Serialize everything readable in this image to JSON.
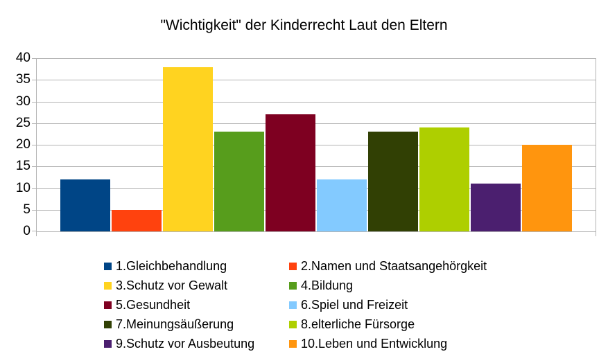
{
  "chart_data": {
    "type": "bar",
    "title": "\"Wichtigkeit\" der Kinderrecht Laut den Eltern",
    "categories": [
      "1.Gleichbehandlung",
      "2.Namen und Staatsangehörgkeit",
      "3.Schutz vor Gewalt",
      "4.Bildung",
      "5.Gesundheit",
      "6.Spiel und Freizeit",
      "7.Meinungsäußerung",
      "8.elterliche Fürsorge",
      "9.Schutz vor Ausbeutung",
      "10.Leben und Entwicklung"
    ],
    "series": [
      {
        "name": "1.Gleichbehandlung",
        "value": 12,
        "color": "#004586"
      },
      {
        "name": "2.Namen und Staatsangehörgkeit",
        "value": 5,
        "color": "#ff420e"
      },
      {
        "name": "3.Schutz vor Gewalt",
        "value": 38,
        "color": "#ffd320"
      },
      {
        "name": "4.Bildung",
        "value": 23,
        "color": "#579d1c"
      },
      {
        "name": "5.Gesundheit",
        "value": 27,
        "color": "#7e0021"
      },
      {
        "name": "6.Spiel und Freizeit",
        "value": 12,
        "color": "#83caff"
      },
      {
        "name": "7.Meinungsäußerung",
        "value": 23,
        "color": "#314004"
      },
      {
        "name": "8.elterliche Fürsorge",
        "value": 24,
        "color": "#aecf00"
      },
      {
        "name": "9.Schutz vor Ausbeutung",
        "value": 11,
        "color": "#4b1f6f"
      },
      {
        "name": "10.Leben und Entwicklung",
        "value": 20,
        "color": "#ff950e"
      }
    ],
    "xlabel": "",
    "ylabel": "",
    "ylim": [
      0,
      40
    ],
    "yticks": [
      0,
      5,
      10,
      15,
      20,
      25,
      30,
      35,
      40
    ],
    "grid": "horizontal-major",
    "gridline_color": "#b3b3b3",
    "axis_color": "#b3b3b3",
    "legend_position": "bottom",
    "legend_columns": 2
  }
}
